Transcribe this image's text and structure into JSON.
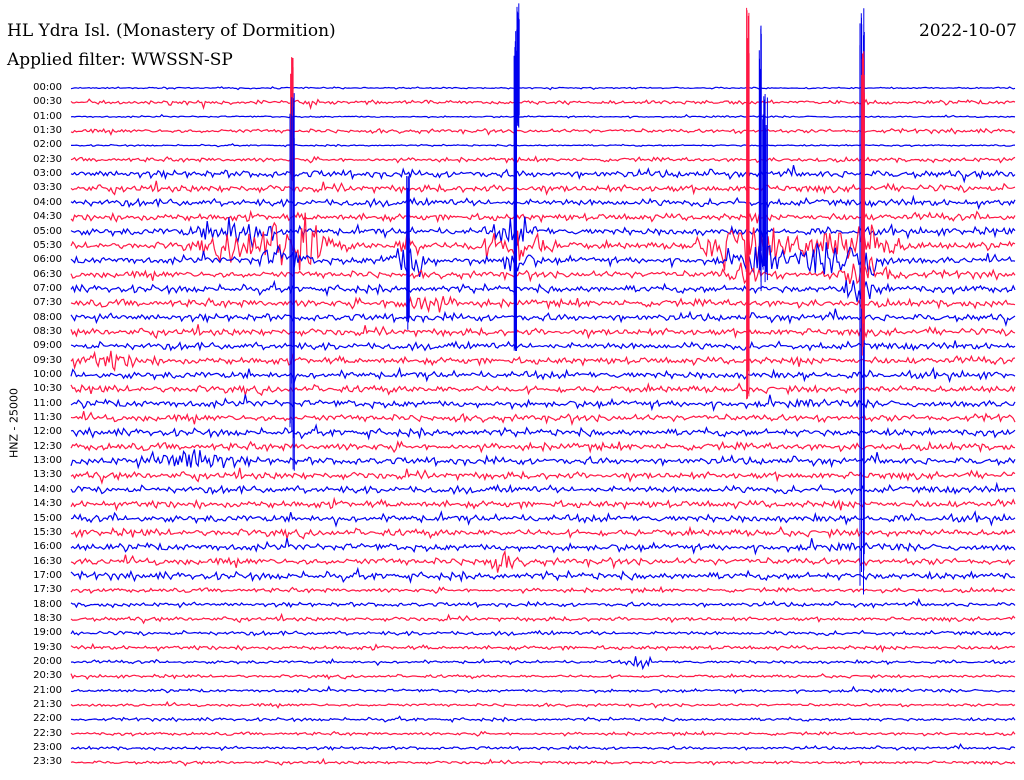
{
  "header": {
    "title": "HL Ydra Isl. (Monastery of Dormition)",
    "date": "2022-10-07",
    "filter": "Applied filter: WWSSN-SP"
  },
  "axis_label": "HNZ - 25000",
  "colors": {
    "even_trace": "#0000ee",
    "odd_trace": "#ff1744"
  },
  "rows": [
    "00:00",
    "00:30",
    "01:00",
    "01:30",
    "02:00",
    "02:30",
    "03:00",
    "03:30",
    "04:00",
    "04:30",
    "05:00",
    "05:30",
    "06:00",
    "06:30",
    "07:00",
    "07:30",
    "08:00",
    "08:30",
    "09:00",
    "09:30",
    "10:00",
    "10:30",
    "11:00",
    "11:30",
    "12:00",
    "12:30",
    "13:00",
    "13:30",
    "14:00",
    "14:30",
    "15:00",
    "15:30",
    "16:00",
    "16:30",
    "17:00",
    "17:30",
    "18:00",
    "18:30",
    "19:00",
    "19:30",
    "20:00",
    "20:30",
    "21:00",
    "21:30",
    "22:00",
    "22:30",
    "23:00",
    "23:30"
  ]
}
